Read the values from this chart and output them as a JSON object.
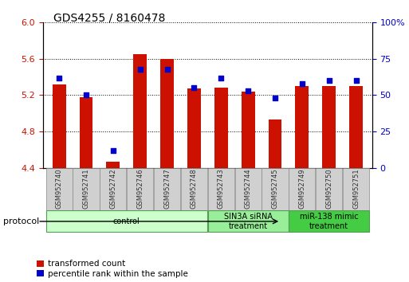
{
  "title": "GDS4255 / 8160478",
  "samples": [
    "GSM952740",
    "GSM952741",
    "GSM952742",
    "GSM952746",
    "GSM952747",
    "GSM952748",
    "GSM952743",
    "GSM952744",
    "GSM952745",
    "GSM952749",
    "GSM952750",
    "GSM952751"
  ],
  "transformed_count": [
    5.32,
    5.18,
    4.47,
    5.65,
    5.6,
    5.27,
    5.28,
    5.24,
    4.93,
    5.3,
    5.3,
    5.3
  ],
  "percentile_rank": [
    62,
    50,
    12,
    68,
    68,
    55,
    62,
    53,
    48,
    58,
    60,
    60
  ],
  "ylim_left": [
    4.4,
    6.0
  ],
  "ylim_right": [
    0,
    100
  ],
  "yticks_left": [
    4.4,
    4.8,
    5.2,
    5.6,
    6.0
  ],
  "yticks_right": [
    0,
    25,
    50,
    75,
    100
  ],
  "bar_color": "#cc1100",
  "marker_color": "#0000cc",
  "groups": [
    {
      "label": "control",
      "start": 0,
      "end": 5,
      "color": "#ccffcc",
      "border": "#88bb88"
    },
    {
      "label": "SIN3A siRNA\ntreatment",
      "start": 6,
      "end": 8,
      "color": "#99ee99",
      "border": "#55aa55"
    },
    {
      "label": "miR-138 mimic\ntreatment",
      "start": 9,
      "end": 11,
      "color": "#44cc44",
      "border": "#22aa22"
    }
  ],
  "protocol_label": "protocol",
  "legend_labels": [
    "transformed count",
    "percentile rank within the sample"
  ],
  "bar_width": 0.5,
  "baseline": 4.4,
  "left_tick_color": "#cc1100",
  "right_tick_color": "#0000cc",
  "label_color": "#555555"
}
